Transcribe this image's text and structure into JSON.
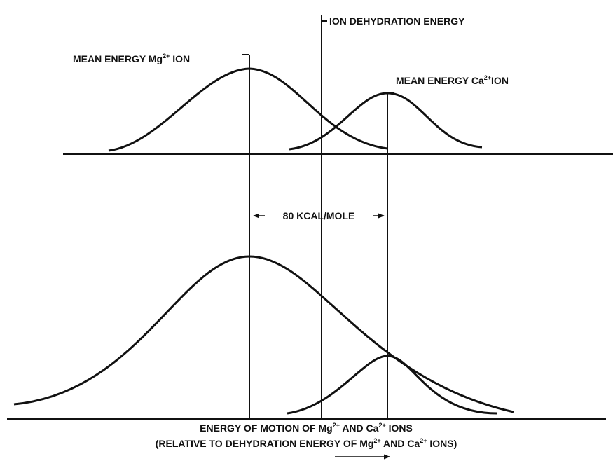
{
  "labels": {
    "dehydration": "ION DEHYDRATION ENERGY",
    "mean_mg": [
      "MEAN ENERGY Mg",
      "2+",
      " ION"
    ],
    "mean_ca": [
      "MEAN ENERGY Ca",
      "2+",
      "ION"
    ],
    "gap": "80 KCAL/MOLE",
    "x_axis": [
      "ENERGY OF MOTION OF Mg",
      "2+",
      " AND Ca",
      "2+",
      " IONS"
    ],
    "x_axis_sub": [
      "(RELATIVE TO DEHYDRATION ENERGY OF Mg",
      "2+",
      " AND Ca",
      "2+",
      " IONS)"
    ]
  }
}
